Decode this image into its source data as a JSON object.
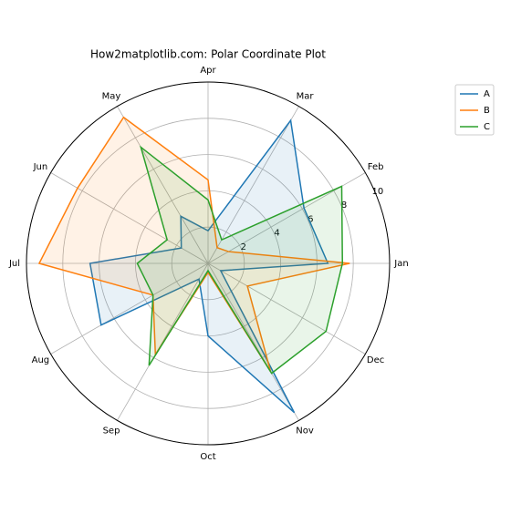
{
  "chart_data": {
    "type": "radar",
    "title": "How2matplotlib.com: Polar Coordinate Plot",
    "categories": [
      "Jan",
      "Feb",
      "Mar",
      "Apr",
      "May",
      "Jun",
      "Jul",
      "Aug",
      "Sep",
      "Oct",
      "Nov",
      "Dec"
    ],
    "series": [
      {
        "name": "A",
        "color": "#1f77b4",
        "values": [
          6.6,
          6.1,
          9.1,
          1.8,
          3.0,
          1.7,
          6.5,
          6.8,
          1.0,
          4.0,
          9.5,
          0.8
        ]
      },
      {
        "name": "B",
        "color": "#ff7f0e",
        "values": [
          7.8,
          1.3,
          1.0,
          4.6,
          9.3,
          8.3,
          9.3,
          3.5,
          5.8,
          0.5,
          6.9,
          2.5
        ]
      },
      {
        "name": "C",
        "color": "#2ca02c",
        "values": [
          7.4,
          8.5,
          1.5,
          3.5,
          7.4,
          2.6,
          3.9,
          3.5,
          6.5,
          0.4,
          7.0,
          7.5
        ]
      }
    ],
    "ylim": [
      0,
      10
    ],
    "yticks": [
      2,
      4,
      6,
      8,
      10
    ],
    "grid": true,
    "legend": "upper right"
  }
}
